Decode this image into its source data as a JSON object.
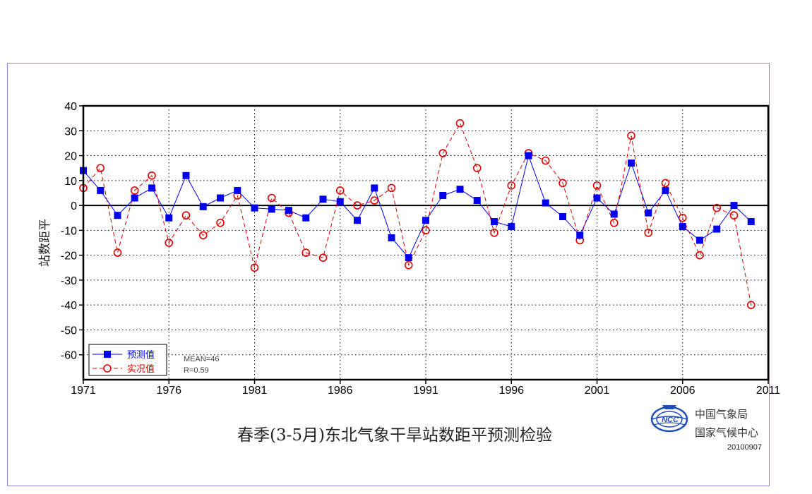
{
  "chart_data": {
    "type": "line",
    "title": "春季(3-5月)东北气象干旱站数距平预测检验",
    "xlabel": "",
    "ylabel": "站数距平",
    "x": [
      1971,
      1972,
      1973,
      1974,
      1975,
      1976,
      1977,
      1978,
      1979,
      1980,
      1981,
      1982,
      1983,
      1984,
      1985,
      1986,
      1987,
      1988,
      1989,
      1990,
      1991,
      1992,
      1993,
      1994,
      1995,
      1996,
      1997,
      1998,
      1999,
      2000,
      2001,
      2002,
      2003,
      2004,
      2005,
      2006,
      2007,
      2008,
      2009,
      2010
    ],
    "xlim": [
      1971,
      2011
    ],
    "ylim": [
      -70,
      40
    ],
    "xticks": [
      "1971",
      "1976",
      "1981",
      "1986",
      "1991",
      "1996",
      "2001",
      "2006",
      "2011"
    ],
    "yticks": [
      "40",
      "30",
      "20",
      "10",
      "0",
      "-10",
      "-20",
      "-30",
      "-40",
      "-50",
      "-60"
    ],
    "grid": true,
    "legend_position": "bottom-left",
    "series": [
      {
        "name": "预测值",
        "color": "#0000ee",
        "marker": "square",
        "line_style": "solid",
        "values": [
          14,
          6,
          -4,
          3,
          7,
          -5,
          12,
          -0.5,
          3,
          6,
          -1,
          -1.5,
          -2,
          -5,
          2.5,
          1.5,
          -6,
          7,
          -13,
          -21,
          -6,
          4,
          6.5,
          2,
          -6.5,
          -8.5,
          20,
          1,
          -4.5,
          -12,
          3,
          -3.5,
          17,
          -3,
          6,
          -8.5,
          -14,
          -9.5,
          0,
          -6.5
        ]
      },
      {
        "name": "实况值",
        "color": "#dd0000",
        "marker": "circle",
        "line_style": "dashed",
        "values": [
          7,
          15,
          -19,
          6,
          12,
          -15,
          -4,
          -12,
          -7,
          4,
          -25,
          3,
          -3,
          -19,
          -21,
          6,
          0,
          2,
          7,
          -24,
          -10,
          21,
          33,
          15,
          -11,
          8,
          21,
          18,
          9,
          -14,
          8,
          -7,
          28,
          -11,
          9,
          -5,
          -20,
          -1,
          -4,
          -40
        ]
      }
    ],
    "annotations": [
      "MEAN=46",
      "R=0.59"
    ]
  },
  "footer": {
    "org_line1": "中国气象局",
    "org_line2": "国家气候中心",
    "date_code": "20100907",
    "logo_icon": "ncc-globe-logo-icon",
    "logo_text": "NCC"
  }
}
